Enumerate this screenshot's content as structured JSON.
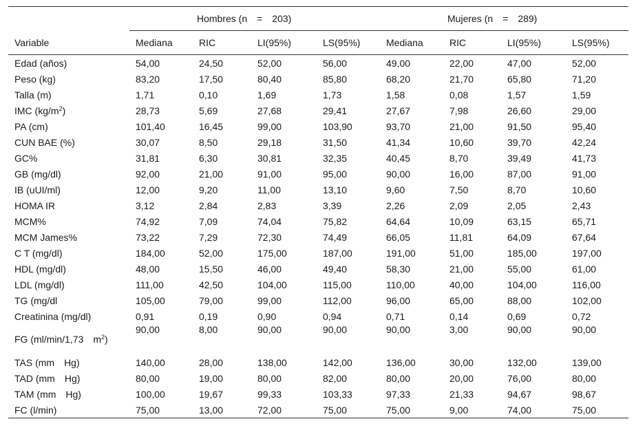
{
  "header": {
    "variable_label": "Variable",
    "group_men": "Hombres (n = 203)",
    "group_women": "Mujeres (n = 289)",
    "cols": [
      "Mediana",
      "RIC",
      "LI(95%)",
      "LS(95%)",
      "Mediana",
      "RIC",
      "LI(95%)",
      "LS(95%)"
    ]
  },
  "rows": [
    {
      "label": "Edad (años)",
      "v": [
        "54,00",
        "24,50",
        "52,00",
        "56,00",
        "49,00",
        "22,00",
        "47,00",
        "52,00"
      ]
    },
    {
      "label": "Peso (kg)",
      "v": [
        "83,20",
        "17,50",
        "80,40",
        "85,80",
        "68,20",
        "21,70",
        "65,80",
        "71,20"
      ]
    },
    {
      "label": "Talla (m)",
      "v": [
        "1,71",
        "0,10",
        "1,69",
        "1,73",
        "1,58",
        "0,08",
        "1,57",
        "1,59"
      ]
    },
    {
      "label": "IMC (kg/m",
      "sup": "2",
      "label_after": ")",
      "v": [
        "28,73",
        "5,69",
        "27,68",
        "29,41",
        "27,67",
        "7,98",
        "26,60",
        "29,00"
      ]
    },
    {
      "label": "PA (cm)",
      "v": [
        "101,40",
        "16,45",
        "99,00",
        "103,90",
        "93,70",
        "21,00",
        "91,50",
        "95,40"
      ]
    },
    {
      "label": "CUN BAE (%)",
      "v": [
        "30,07",
        "8,50",
        "29,18",
        "31,50",
        "41,34",
        "10,60",
        "39,70",
        "42,24"
      ]
    },
    {
      "label": "GC%",
      "v": [
        "31,81",
        "6,30",
        "30,81",
        "32,35",
        "40,45",
        "8,70",
        "39,49",
        "41,73"
      ]
    },
    {
      "label": "GB (mg/dl)",
      "v": [
        "92,00",
        "21,00",
        "91,00",
        "95,00",
        "90,00",
        "16,00",
        "87,00",
        "91,00"
      ]
    },
    {
      "label": "IB (uUI/ml)",
      "v": [
        "12,00",
        "9,20",
        "11,00",
        "13,10",
        "9,60",
        "7,50",
        "8,70",
        "10,60"
      ]
    },
    {
      "label": "HOMA IR",
      "v": [
        "3,12",
        "2,84",
        "2,83",
        "3,39",
        "2,26",
        "2,09",
        "2,05",
        "2,43"
      ]
    },
    {
      "label": "MCM%",
      "v": [
        "74,92",
        "7,09",
        "74,04",
        "75,82",
        "64,64",
        "10,09",
        "63,15",
        "65,71"
      ]
    },
    {
      "label": "MCM James%",
      "v": [
        "73,22",
        "7,29",
        "72,30",
        "74,49",
        "66,05",
        "11,81",
        "64,09",
        "67,64"
      ]
    },
    {
      "label": "C T (mg/dl)",
      "v": [
        "184,00",
        "52,00",
        "175,00",
        "187,00",
        "191,00",
        "51,00",
        "185,00",
        "197,00"
      ]
    },
    {
      "label": "HDL (mg/dl)",
      "v": [
        "48,00",
        "15,50",
        "46,00",
        "49,40",
        "58,30",
        "21,00",
        "55,00",
        "61,00"
      ]
    },
    {
      "label": "LDL (mg/dl)",
      "v": [
        "111,00",
        "42,50",
        "104,00",
        "115,00",
        "110,00",
        "40,00",
        "104,00",
        "116,00"
      ]
    },
    {
      "label": "TG (mg/dl",
      "v": [
        "105,00",
        "79,00",
        "99,00",
        "112,00",
        "96,00",
        "65,00",
        "88,00",
        "102,00"
      ]
    },
    {
      "label": "Creatinina (mg/dl)",
      "v": [
        "0,91",
        "0,19",
        "0,90",
        "0,94",
        "0,71",
        "0,14",
        "0,69",
        "0,72"
      ]
    },
    {
      "label": "FG (ml/min/1,73 m",
      "sup": "2",
      "label_after": ")",
      "tall": true,
      "v": [
        "90,00",
        "8,00",
        "90,00",
        "90,00",
        "90,00",
        "3,00",
        "90,00",
        "90,00"
      ]
    },
    {
      "label": "TAS (mm Hg)",
      "v": [
        "140,00",
        "28,00",
        "138,00",
        "142,00",
        "136,00",
        "30,00",
        "132,00",
        "139,00"
      ]
    },
    {
      "label": "TAD (mm Hg)",
      "v": [
        "80,00",
        "19,00",
        "80,00",
        "82,00",
        "80,00",
        "20,00",
        "76,00",
        "80,00"
      ]
    },
    {
      "label": "TAM (mm Hg)",
      "v": [
        "100,00",
        "19,67",
        "99,33",
        "103,33",
        "97,33",
        "21,33",
        "94,67",
        "98,67"
      ]
    },
    {
      "label": "FC (l/min)",
      "v": [
        "75,00",
        "13,00",
        "72,00",
        "75,00",
        "75,00",
        "9,00",
        "74,00",
        "75,00"
      ]
    }
  ]
}
